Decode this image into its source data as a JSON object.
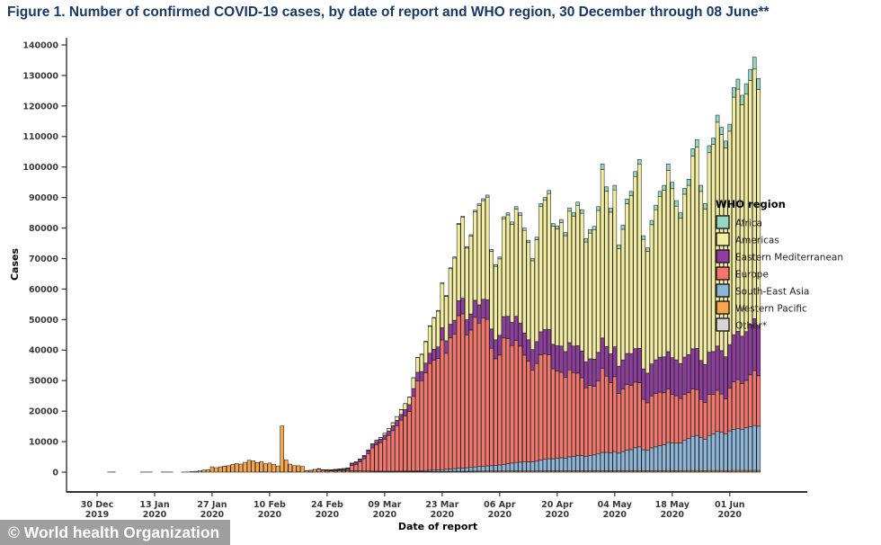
{
  "title": "Figure 1. Number of confirmed COVID-19 cases, by date of report and WHO region, 30 December through 08 June**",
  "watermark": "© World health Organization",
  "chart_data": {
    "type": "bar",
    "stacked": true,
    "title": "",
    "xlabel": "Date of report",
    "ylabel": "Cases",
    "ylim": [
      0,
      140000
    ],
    "yticks": [
      0,
      10000,
      20000,
      30000,
      40000,
      50000,
      60000,
      70000,
      80000,
      90000,
      100000,
      110000,
      120000,
      130000,
      140000
    ],
    "grid": false,
    "legend_title": "WHO region",
    "legend_position": "right",
    "x_unit": "day",
    "n_days": 162,
    "x_start_label": "30 Dec 2019",
    "x_end_label": "08 Jun 2020",
    "xticks": [
      {
        "day_index": 0,
        "l1": "30 Dec",
        "l2": "2019"
      },
      {
        "day_index": 14,
        "l1": "13 Jan",
        "l2": "2020"
      },
      {
        "day_index": 28,
        "l1": "27 Jan",
        "l2": "2020"
      },
      {
        "day_index": 42,
        "l1": "10 Feb",
        "l2": "2020"
      },
      {
        "day_index": 56,
        "l1": "24 Feb",
        "l2": "2020"
      },
      {
        "day_index": 70,
        "l1": "09 Mar",
        "l2": "2020"
      },
      {
        "day_index": 84,
        "l1": "23 Mar",
        "l2": "2020"
      },
      {
        "day_index": 98,
        "l1": "06 Apr",
        "l2": "2020"
      },
      {
        "day_index": 112,
        "l1": "20 Apr",
        "l2": "2020"
      },
      {
        "day_index": 126,
        "l1": "04 May",
        "l2": "2020"
      },
      {
        "day_index": 140,
        "l1": "18 May",
        "l2": "2020"
      },
      {
        "day_index": 154,
        "l1": "01 Jun",
        "l2": "2020"
      }
    ],
    "stack_order_bottom_to_top": [
      "Other*",
      "Western Pacific",
      "South-East Asia",
      "Europe",
      "Eastern Mediterranean",
      "Americas",
      "Africa"
    ],
    "values_note": "Daily new cases (estimated from figure). Each series starts at day index first_day (day 0 = 30 Dec 2019); earlier days are zero.",
    "series": [
      {
        "name": "Africa",
        "color": "#96d7c3",
        "first_day": 62,
        "values": [
          2,
          2,
          3,
          4,
          5,
          6,
          8,
          10,
          13,
          17,
          22,
          28,
          36,
          46,
          60,
          75,
          95,
          120,
          150,
          185,
          225,
          270,
          300,
          330,
          310,
          340,
          380,
          420,
          450,
          480,
          500,
          550,
          600,
          650,
          620,
          580,
          600,
          650,
          700,
          750,
          800,
          790,
          770,
          750,
          730,
          790,
          850,
          920,
          990,
          950,
          970,
          1010,
          990,
          1080,
          1100,
          1160,
          1140,
          1080,
          1130,
          1170,
          1230,
          1800,
          1400,
          1300,
          1500,
          1300,
          1400,
          1500,
          1400,
          1600,
          1600,
          1200,
          1100,
          1400,
          1500,
          1600,
          1600,
          2100,
          2100,
          1800,
          1800,
          1900,
          2000,
          2400,
          2400,
          2000,
          1800,
          2300,
          2100,
          2300,
          2300,
          2300,
          2300,
          3100,
          3300,
          3100,
          3400,
          3600,
          3900,
          3600
        ]
      },
      {
        "name": "Americas",
        "color": "#f2eda0",
        "first_day": 54,
        "values": [
          10,
          10,
          20,
          20,
          30,
          40,
          50,
          60,
          100,
          130,
          160,
          200,
          250,
          320,
          400,
          500,
          630,
          780,
          980,
          1230,
          1550,
          1950,
          2450,
          3500,
          4800,
          5600,
          7000,
          8800,
          10200,
          11700,
          14500,
          14600,
          18200,
          20400,
          25000,
          26500,
          23500,
          25500,
          29000,
          32600,
          32340,
          33680,
          25460,
          24060,
          25030,
          32070,
          33210,
          32160,
          35100,
          35320,
          33590,
          31870,
          29090,
          33420,
          41150,
          42370,
          44590,
          38640,
          38310,
          40460,
          37990,
          43080,
          42560,
          45890,
          45110,
          39290,
          41230,
          42320,
          46510,
          55220,
          50930,
          46440,
          51420,
          38450,
          42830,
          49110,
          51720,
          56400,
          60300,
          42440,
          39950,
          45620,
          49210,
          52700,
          54600,
          59380,
          55390,
          50400,
          47600,
          53390,
          55480,
          63160,
          66060,
          55390,
          50900,
          65370,
          67870,
          73360,
          70870,
          68380,
          69900,
          77850,
          79340,
          75850,
          77840,
          80030,
          81820,
          77330
        ]
      },
      {
        "name": "Eastern Mediterranean",
        "color": "#8f3d9e",
        "first_day": 51,
        "values": [
          20,
          30,
          60,
          90,
          140,
          180,
          220,
          260,
          320,
          390,
          460,
          700,
          750,
          800,
          850,
          900,
          1000,
          1100,
          1200,
          1300,
          1450,
          1600,
          1750,
          1900,
          2050,
          2250,
          2500,
          2800,
          3000,
          3200,
          3400,
          3600,
          3800,
          4000,
          4100,
          4400,
          4600,
          4900,
          5100,
          5000,
          5300,
          5600,
          6000,
          6200,
          6400,
          6300,
          6200,
          6500,
          7000,
          7300,
          7600,
          7900,
          7600,
          7300,
          7000,
          6800,
          7200,
          7600,
          8000,
          8300,
          8000,
          8300,
          8600,
          8400,
          8900,
          8700,
          9000,
          8800,
          8500,
          8700,
          8900,
          9300,
          10000,
          9700,
          9400,
          9800,
          9000,
          9500,
          10200,
          10500,
          11000,
          11300,
          10000,
          9700,
          10500,
          11000,
          11500,
          11800,
          12300,
          12000,
          11800,
          11500,
          12200,
          12500,
          13200,
          13500,
          12800,
          12500,
          13800,
          14000,
          14500,
          14200,
          13800,
          14300,
          15500,
          15800,
          15500,
          16000,
          16500,
          17000,
          16500
        ]
      },
      {
        "name": "Europe",
        "color": "#f4766c",
        "first_day": 54,
        "values": [
          30,
          60,
          90,
          130,
          180,
          250,
          330,
          430,
          1700,
          2050,
          2900,
          4000,
          5700,
          7600,
          8600,
          9300,
          10500,
          11700,
          13300,
          14900,
          16700,
          18100,
          19500,
          24500,
          29500,
          29500,
          32000,
          35000,
          36000,
          36500,
          42500,
          38000,
          43000,
          44000,
          50000,
          50500,
          43500,
          45000,
          49000,
          47000,
          48500,
          48000,
          38500,
          35000,
          36000,
          41500,
          41000,
          38500,
          40000,
          38000,
          35000,
          33000,
          30000,
          32000,
          34500,
          34500,
          34000,
          29500,
          28500,
          28000,
          26500,
          28500,
          27500,
          27000,
          25500,
          22500,
          23000,
          22500,
          24000,
          27500,
          25000,
          23000,
          24500,
          19500,
          20500,
          21500,
          21000,
          21500,
          21000,
          16500,
          15500,
          17000,
          17500,
          17500,
          17000,
          17500,
          16000,
          15500,
          14500,
          15000,
          15000,
          15500,
          15000,
          12500,
          12000,
          13500,
          13000,
          13500,
          12500,
          11500,
          14000,
          15500,
          16000,
          15000,
          15500,
          17000,
          18000,
          16500
        ]
      },
      {
        "name": "South-East Asia",
        "color": "#8db6d8",
        "first_day": 62,
        "values": [
          5,
          6,
          8,
          10,
          12,
          15,
          18,
          22,
          28,
          35,
          45,
          60,
          80,
          100,
          130,
          160,
          200,
          250,
          310,
          380,
          450,
          520,
          600,
          700,
          800,
          900,
          1000,
          1100,
          1150,
          1250,
          1400,
          1500,
          1600,
          1700,
          1750,
          1800,
          2000,
          2100,
          2400,
          2600,
          2800,
          2900,
          2950,
          3000,
          3000,
          3200,
          3500,
          3800,
          4000,
          4000,
          4200,
          4300,
          4200,
          4600,
          4700,
          5000,
          5000,
          4700,
          5000,
          5200,
          5500,
          6000,
          6000,
          5900,
          6300,
          5800,
          6300,
          6700,
          6900,
          7500,
          7800,
          6900,
          6800,
          7500,
          7800,
          8200,
          8500,
          9200,
          9000,
          9000,
          9100,
          10000,
          10500,
          11200,
          11500,
          10800,
          10300,
          11500,
          12000,
          12800,
          12600,
          12000,
          13000,
          13500,
          13800,
          13500,
          14000,
          14300,
          14700,
          14500
        ]
      },
      {
        "name": "Western Pacific",
        "color": "#f7a54e",
        "first_day": 3,
        "values": [
          45,
          60,
          0,
          0,
          0,
          0,
          0,
          0,
          45,
          55,
          40,
          0,
          0,
          45,
          55,
          40,
          0,
          0,
          15,
          60,
          150,
          260,
          460,
          700,
          780,
          1760,
          1460,
          1740,
          1980,
          2100,
          2590,
          2830,
          2650,
          3230,
          3890,
          3720,
          3160,
          3420,
          2670,
          2990,
          2550,
          2030,
          15100,
          4010,
          2570,
          2130,
          2000,
          1850,
          510,
          560,
          830,
          950,
          600,
          480,
          410,
          420,
          450,
          400,
          470,
          430,
          400,
          380,
          360,
          340,
          320,
          300,
          280,
          260,
          250,
          240,
          240,
          230,
          230,
          220,
          210,
          200,
          200,
          200,
          200,
          200,
          200,
          200,
          220,
          240,
          250,
          250,
          250,
          260,
          280,
          300,
          300,
          320,
          330,
          330,
          320,
          330,
          340,
          350,
          350,
          360,
          350,
          350,
          340,
          340,
          350,
          360,
          370,
          380,
          370,
          380,
          390,
          380,
          400,
          400,
          410,
          410,
          390,
          400,
          410,
          420,
          430,
          420,
          410,
          430,
          400,
          420,
          440,
          430,
          450,
          450,
          410,
          400,
          430,
          440,
          450,
          450,
          470,
          460,
          450,
          450,
          460,
          470,
          490,
          490,
          460,
          450,
          480,
          480,
          490,
          480,
          470,
          480,
          500,
          510,
          500,
          510,
          520,
          530,
          520
        ]
      },
      {
        "name": "Other*",
        "color": "#d6d6d6",
        "first_day": 40,
        "values": [
          65,
          70,
          0,
          40,
          0,
          45,
          0,
          70,
          0,
          100,
          0,
          0,
          30,
          0,
          60,
          0,
          30,
          0,
          40,
          0,
          35,
          0,
          30,
          30,
          30,
          30,
          30,
          30,
          30,
          30,
          30,
          30,
          30,
          30,
          30,
          30,
          30,
          30,
          30,
          30,
          30,
          30,
          30,
          30,
          30,
          30,
          30,
          30,
          30,
          30,
          30,
          30,
          30,
          40,
          40,
          40,
          40,
          40,
          40,
          40,
          40,
          40,
          40,
          40,
          40,
          40,
          40,
          40,
          40,
          40,
          40,
          40,
          40,
          40,
          40,
          40,
          40,
          40,
          40,
          40,
          40,
          40,
          40,
          50,
          50,
          50,
          50,
          50,
          50,
          50,
          50,
          50,
          50,
          50,
          50,
          50,
          50,
          50,
          50,
          50,
          50,
          50,
          50,
          50,
          50,
          50,
          50,
          50,
          50,
          50,
          50,
          50,
          50,
          50,
          50,
          50,
          50,
          50,
          50,
          50,
          50,
          50
        ]
      }
    ]
  }
}
